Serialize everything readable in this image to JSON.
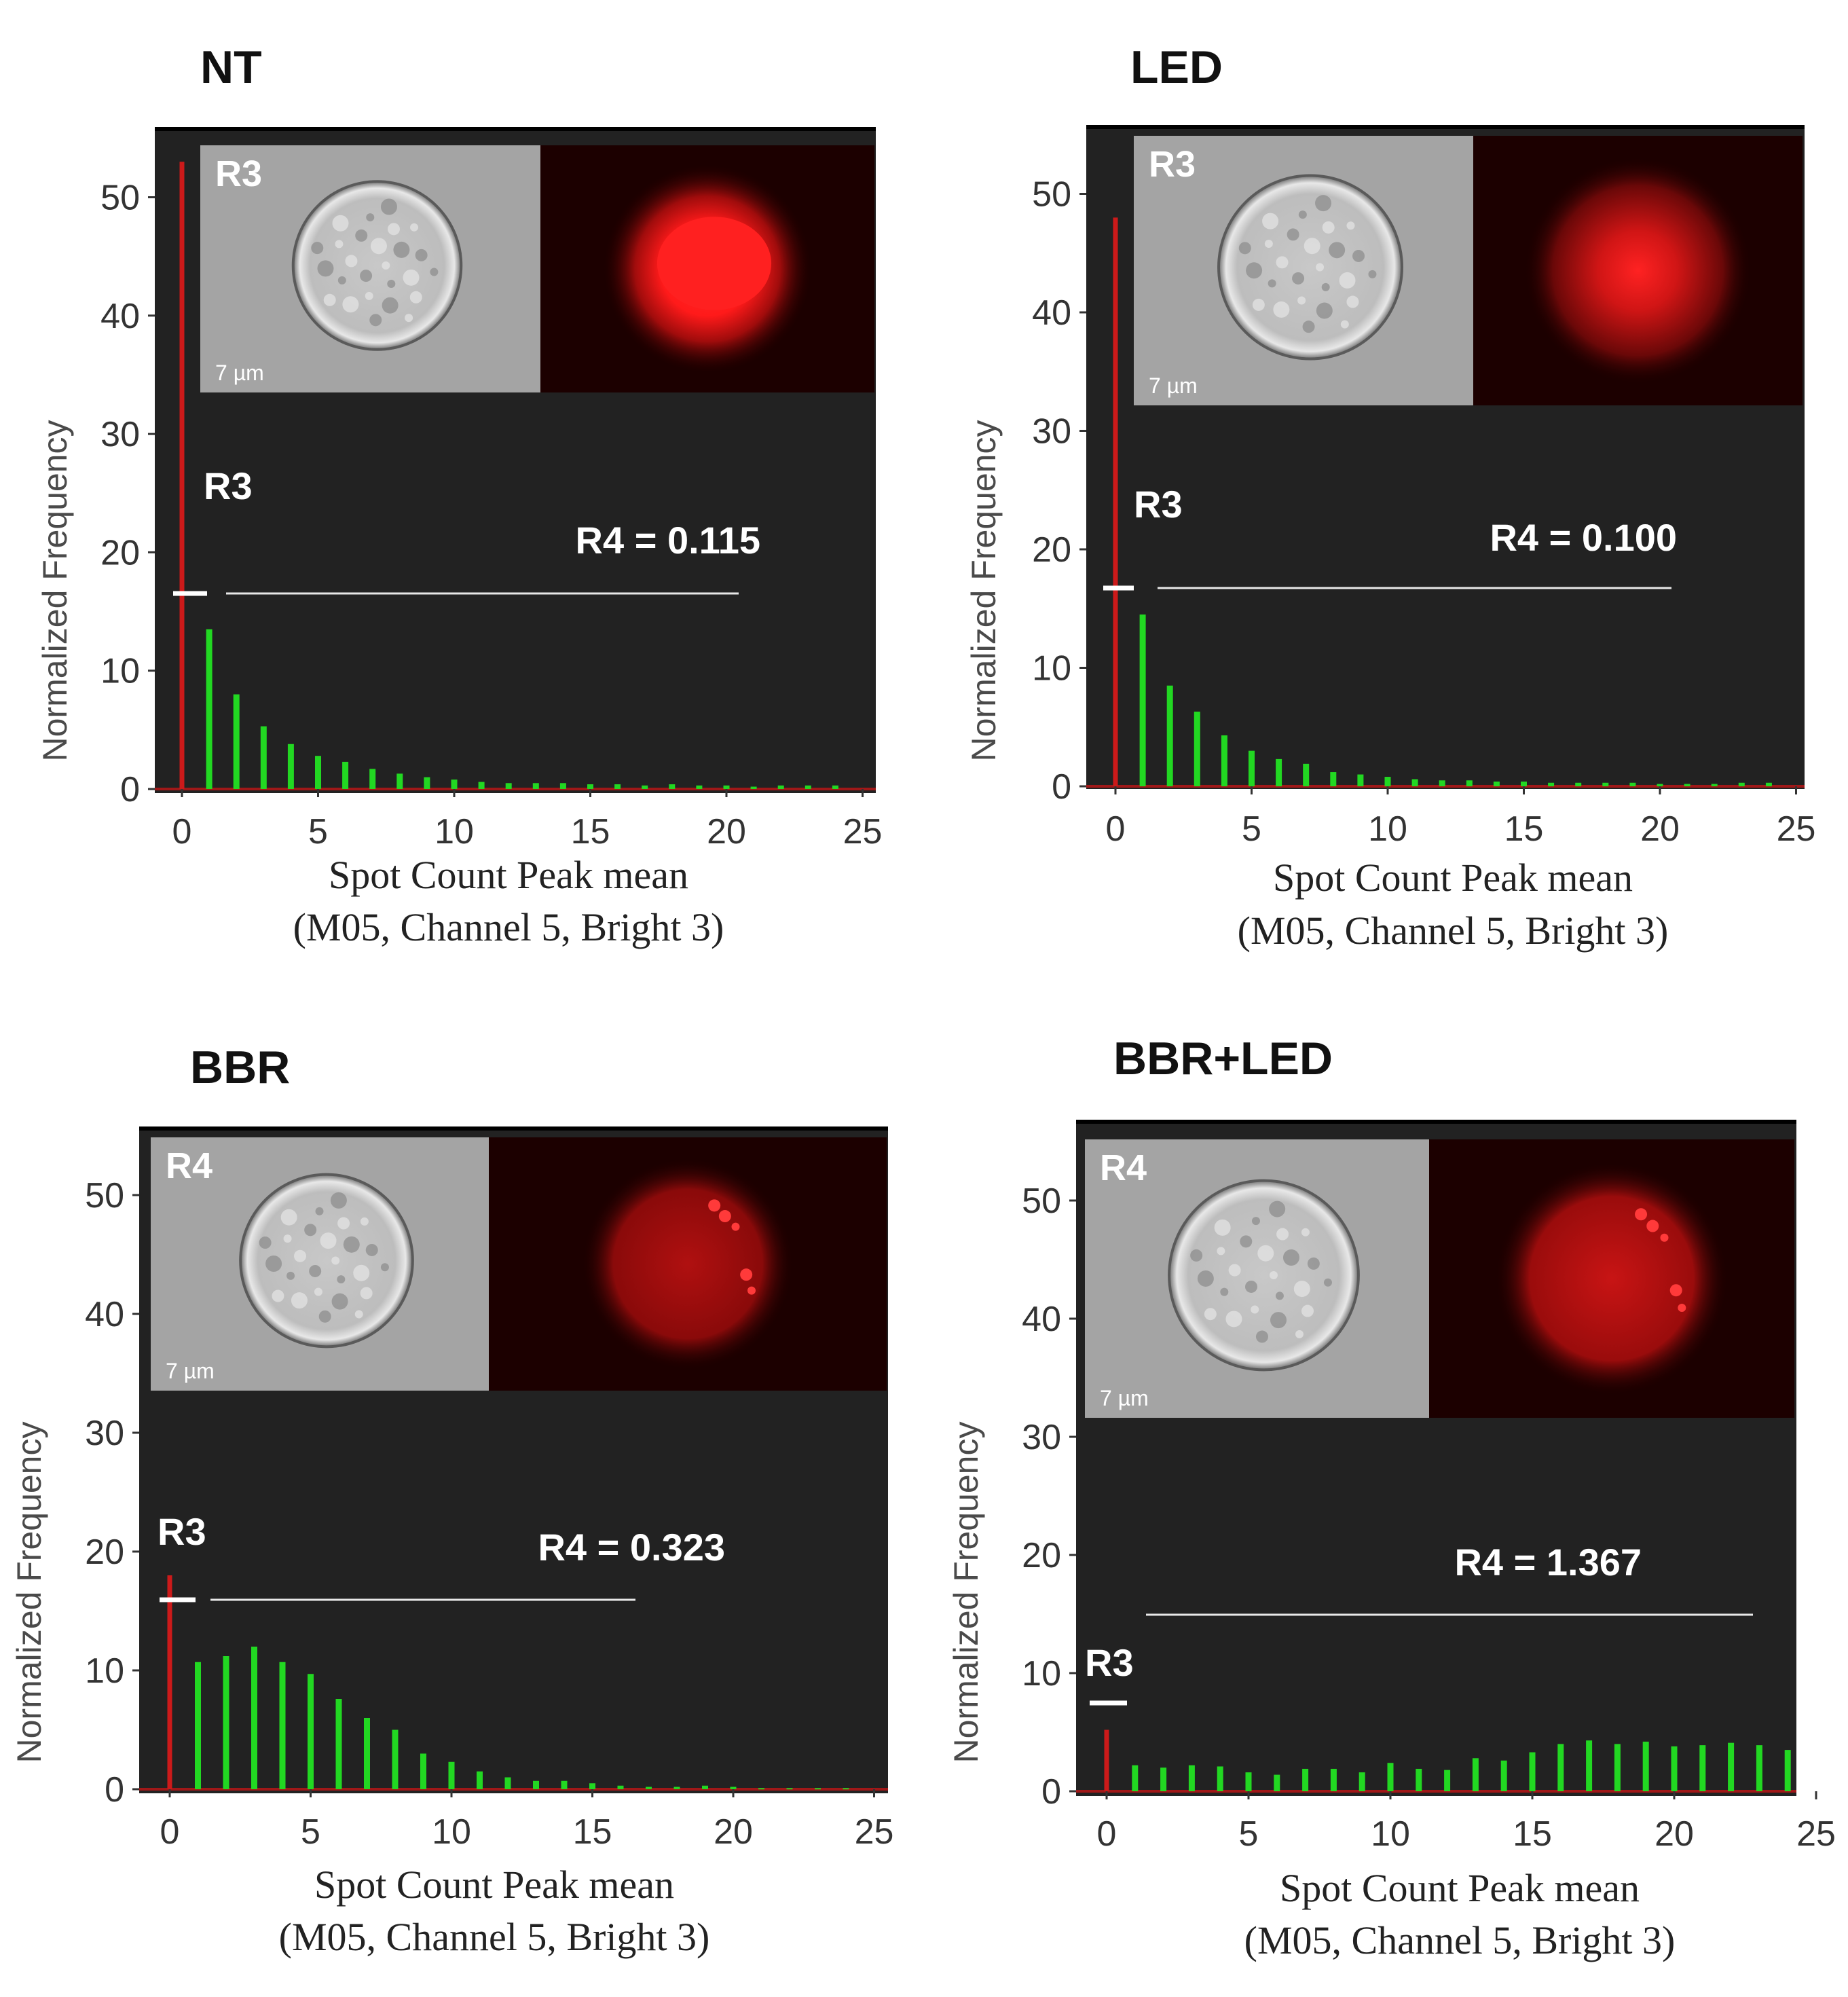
{
  "chart_data": [
    {
      "type": "bar",
      "condition": "NT",
      "inset_label": "R3",
      "scale_bar": "7 µm",
      "gate_R3_label": "R3",
      "gate_R4_value": "R4 =  0.115",
      "ylabel": "Normalized Frequency",
      "xlabel_line1": "Spot Count Peak  mean",
      "xlabel_line2": "(M05, Channel 5, Bright 3)",
      "xlim": [
        0,
        25
      ],
      "ylim": [
        0,
        55
      ],
      "x_ticks": [
        "0",
        "5",
        "10",
        "15",
        "20",
        "25"
      ],
      "y_ticks": [
        "0",
        "10",
        "20",
        "30",
        "40",
        "50"
      ],
      "bar_x": [
        0,
        1,
        2,
        3,
        4,
        5,
        6,
        7,
        8,
        9,
        10,
        11,
        12,
        13,
        14,
        15,
        16,
        17,
        18,
        19,
        20,
        21,
        22,
        23,
        24
      ],
      "values": [
        53,
        13.5,
        8,
        5.3,
        3.8,
        2.8,
        2.3,
        1.7,
        1.3,
        1,
        0.8,
        0.6,
        0.5,
        0.5,
        0.5,
        0.4,
        0.4,
        0.3,
        0.4,
        0.3,
        0.3,
        0.2,
        0.3,
        0.3,
        0.3
      ]
    },
    {
      "type": "bar",
      "condition": "LED",
      "inset_label": "R3",
      "scale_bar": "7 µm",
      "gate_R3_label": "R3",
      "gate_R4_value": "R4 = 0.100",
      "ylabel": "Normalized Frequency",
      "xlabel_line1": "Spot Count Peak  mean",
      "xlabel_line2": "(M05, Channel 5, Bright 3)",
      "xlim": [
        0,
        25
      ],
      "ylim": [
        0,
        55
      ],
      "x_ticks": [
        "0",
        "5",
        "10",
        "15",
        "20",
        "25"
      ],
      "y_ticks": [
        "0",
        "10",
        "20",
        "30",
        "40",
        "50"
      ],
      "bar_x": [
        0,
        1,
        2,
        3,
        4,
        5,
        6,
        7,
        8,
        9,
        10,
        11,
        12,
        13,
        14,
        15,
        16,
        17,
        18,
        19,
        20,
        21,
        22,
        23,
        24
      ],
      "values": [
        48,
        14.5,
        8.5,
        6.3,
        4.3,
        3,
        2.3,
        1.9,
        1.2,
        1,
        0.8,
        0.6,
        0.5,
        0.5,
        0.4,
        0.4,
        0.3,
        0.3,
        0.3,
        0.3,
        0.2,
        0.2,
        0.2,
        0.3,
        0.3
      ]
    },
    {
      "type": "bar",
      "condition": "BBR",
      "inset_label": "R4",
      "scale_bar": "7 µm",
      "gate_R3_label": "R3",
      "gate_R4_value": "R4 = 0.323",
      "ylabel": "Normalized Frequency",
      "xlabel_line1": "Spot Count Peak  mean",
      "xlabel_line2": "(M05, Channel 5, Bright 3)",
      "xlim": [
        0,
        25
      ],
      "ylim": [
        0,
        55
      ],
      "x_ticks": [
        "0",
        "5",
        "10",
        "15",
        "20",
        "25"
      ],
      "y_ticks": [
        "0",
        "10",
        "20",
        "30",
        "40",
        "50"
      ],
      "bar_x": [
        0,
        1,
        2,
        3,
        4,
        5,
        6,
        7,
        8,
        9,
        10,
        11,
        12,
        13,
        14,
        15,
        16,
        17,
        18,
        19,
        20,
        21,
        22,
        23,
        24
      ],
      "values": [
        18,
        10.7,
        11.2,
        12,
        10.7,
        9.7,
        7.6,
        6,
        5,
        3,
        2.3,
        1.5,
        1,
        0.7,
        0.7,
        0.5,
        0.3,
        0.2,
        0.2,
        0.3,
        0.2,
        0.1,
        0.1,
        0.1,
        0.1
      ]
    },
    {
      "type": "bar",
      "condition": "BBR+LED",
      "inset_label": "R4",
      "scale_bar": "7 µm",
      "gate_R3_label": "R3",
      "gate_R4_value": "R4 = 1.367",
      "ylabel": "Normalized Frequency",
      "xlabel_line1": "Spot Count Peak  mean",
      "xlabel_line2": "(M05, Channel 5, Bright 3)",
      "xlim": [
        0,
        25
      ],
      "ylim": [
        0,
        55
      ],
      "x_ticks": [
        "0",
        "5",
        "10",
        "15",
        "20",
        "25"
      ],
      "y_ticks": [
        "0",
        "10",
        "20",
        "30",
        "40",
        "50"
      ],
      "bar_x": [
        0,
        1,
        2,
        3,
        4,
        5,
        6,
        7,
        8,
        9,
        10,
        11,
        12,
        13,
        14,
        15,
        16,
        17,
        18,
        19,
        20,
        21,
        22,
        23,
        24
      ],
      "values": [
        5.2,
        2.2,
        2,
        2.2,
        2.1,
        1.6,
        1.4,
        1.9,
        1.9,
        1.6,
        2.4,
        1.9,
        1.8,
        2.8,
        2.6,
        3.3,
        4,
        4.3,
        4,
        4.2,
        3.8,
        3.9,
        4.1,
        3.9,
        3.5
      ]
    }
  ],
  "colors": {
    "plot_background": "#222222",
    "bar_green": "#22d822",
    "zero_bar_red": "#cc1a1a",
    "fluorescence_red": "#ff1e1e",
    "brightfield_gray": "#a4a4a4"
  }
}
